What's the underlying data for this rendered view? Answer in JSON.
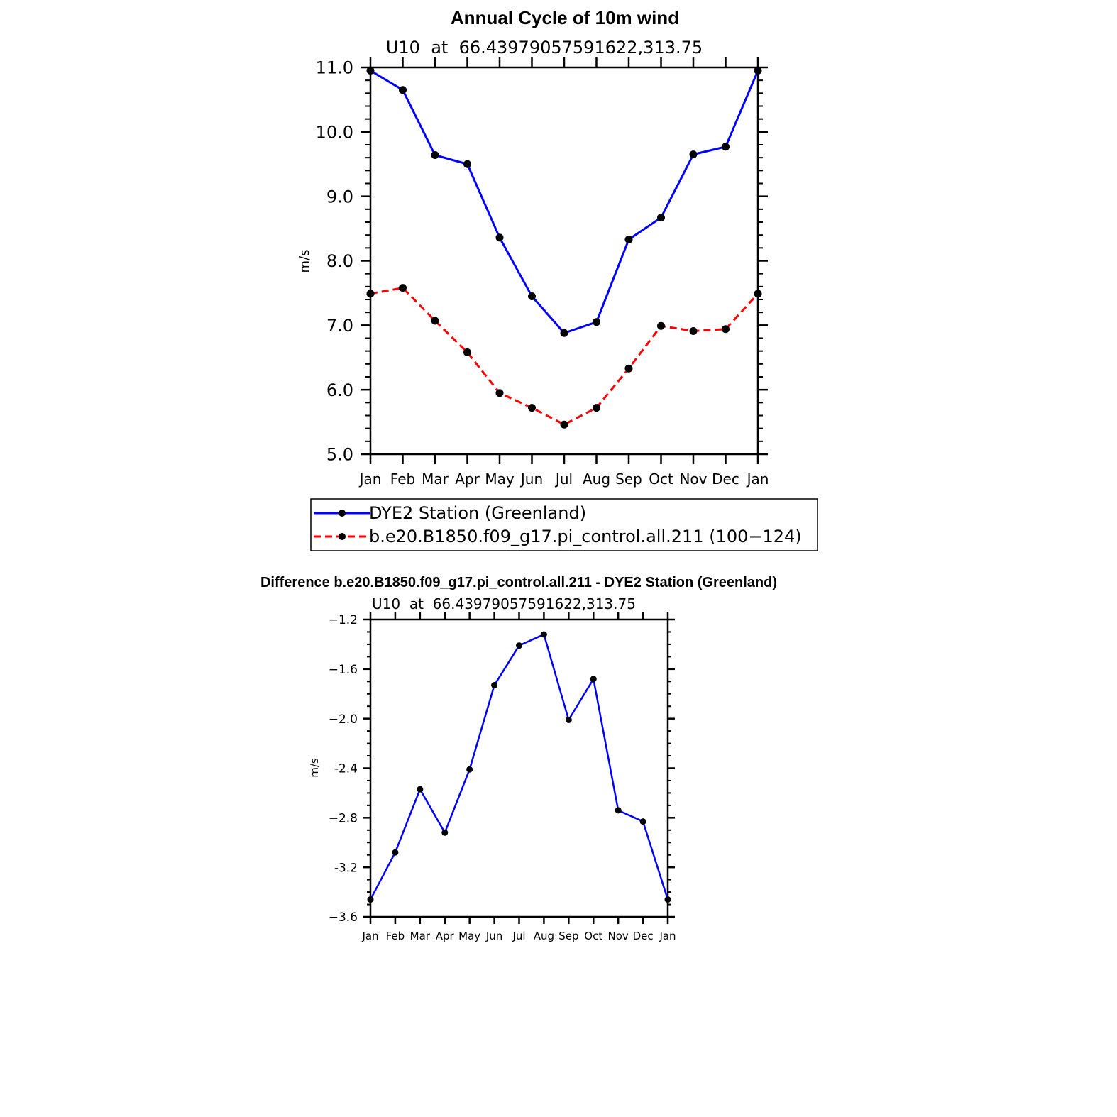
{
  "chart_data": [
    {
      "type": "line",
      "title": "Annual Cycle of 10m wind",
      "subtitle": "U10  at  66.43979057591622,313.75",
      "xlabel": "",
      "ylabel": "m/s",
      "categories": [
        "Jan",
        "Feb",
        "Mar",
        "Apr",
        "May",
        "Jun",
        "Jul",
        "Aug",
        "Sep",
        "Oct",
        "Nov",
        "Dec",
        "Jan"
      ],
      "ylim": [
        5.0,
        11.0
      ],
      "yticks": [
        "5.0",
        "6.0",
        "7.0",
        "8.0",
        "9.0",
        "10.0",
        "11.0"
      ],
      "grid": false,
      "legend": "below",
      "series": [
        {
          "name": "DYE2 Station (Greenland)",
          "color": "#0000ff",
          "dash": "solid",
          "values": [
            10.95,
            10.65,
            9.64,
            9.5,
            8.36,
            7.45,
            6.88,
            7.05,
            8.33,
            8.67,
            9.65,
            9.77,
            10.95
          ]
        },
        {
          "name": "b.e20.B1850.f09_g17.pi_control.all.211 (100−124)",
          "color": "#ff0000",
          "dash": "dashed",
          "values": [
            7.49,
            7.58,
            7.07,
            6.58,
            5.95,
            5.72,
            5.46,
            5.72,
            6.33,
            6.99,
            6.91,
            6.94,
            7.49
          ]
        }
      ]
    },
    {
      "type": "line",
      "title": "Difference b.e20.B1850.f09_g17.pi_control.all.211 - DYE2 Station (Greenland)",
      "subtitle": "U10  at  66.43979057591622,313.75",
      "xlabel": "",
      "ylabel": "m/s",
      "categories": [
        "Jan",
        "Feb",
        "Mar",
        "Apr",
        "May",
        "Jun",
        "Jul",
        "Aug",
        "Sep",
        "Oct",
        "Nov",
        "Dec",
        "Jan"
      ],
      "ylim": [
        -3.6,
        -1.2
      ],
      "yticks": [
        "−3.6",
        "-3.2",
        "−2.8",
        "-2.4",
        "−2.0",
        "−1.6",
        "−1.2"
      ],
      "grid": false,
      "series": [
        {
          "color": "#0000ff",
          "dash": "solid",
          "values": [
            -3.46,
            -3.08,
            -2.57,
            -2.92,
            -2.41,
            -1.73,
            -1.41,
            -1.32,
            -2.01,
            -1.68,
            -2.74,
            -2.83,
            -3.46
          ]
        }
      ]
    }
  ]
}
